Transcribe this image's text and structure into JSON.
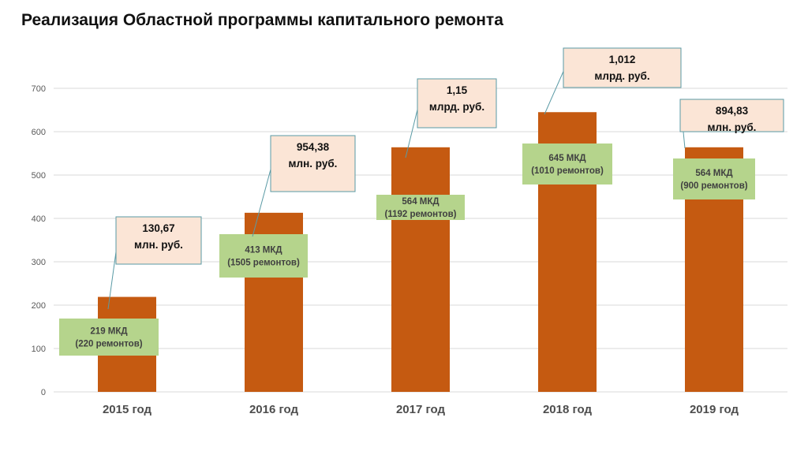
{
  "title": "Реализация Областной программы капитального ремонта",
  "chart_data": {
    "type": "bar",
    "title": "Реализация Областной программы капитального ремонта",
    "categories": [
      "2015 год",
      "2016 год",
      "2017 год",
      "2018 год",
      "2019 год"
    ],
    "values": [
      219,
      413,
      564,
      645,
      564
    ],
    "ylim": [
      0,
      700
    ],
    "yticks": [
      0,
      100,
      200,
      300,
      400,
      500,
      600,
      700
    ],
    "grid": true,
    "colors": {
      "bar": "#c55a11",
      "grid": "#d9d9d9",
      "green_box": "#b5d48c",
      "money_box": "#fbe5d6",
      "money_border": "#5a9aa5"
    },
    "data_labels": [
      [
        "219 МКД",
        "(220 ремонтов)"
      ],
      [
        "413 МКД",
        "(1505 ремонтов)"
      ],
      [
        "564 МКД",
        "(1192 ремонтов)"
      ],
      [
        "645 МКД",
        "(1010 ремонтов)"
      ],
      [
        "564 МКД",
        "(900 ремонтов)"
      ]
    ],
    "annotations": [
      [
        "130,67",
        "млн. руб."
      ],
      [
        "954,38",
        "млн. руб."
      ],
      [
        "1,15",
        "млрд. руб."
      ],
      [
        "1,012",
        "млрд. руб."
      ],
      [
        "894,83",
        "млн. руб."
      ]
    ]
  }
}
